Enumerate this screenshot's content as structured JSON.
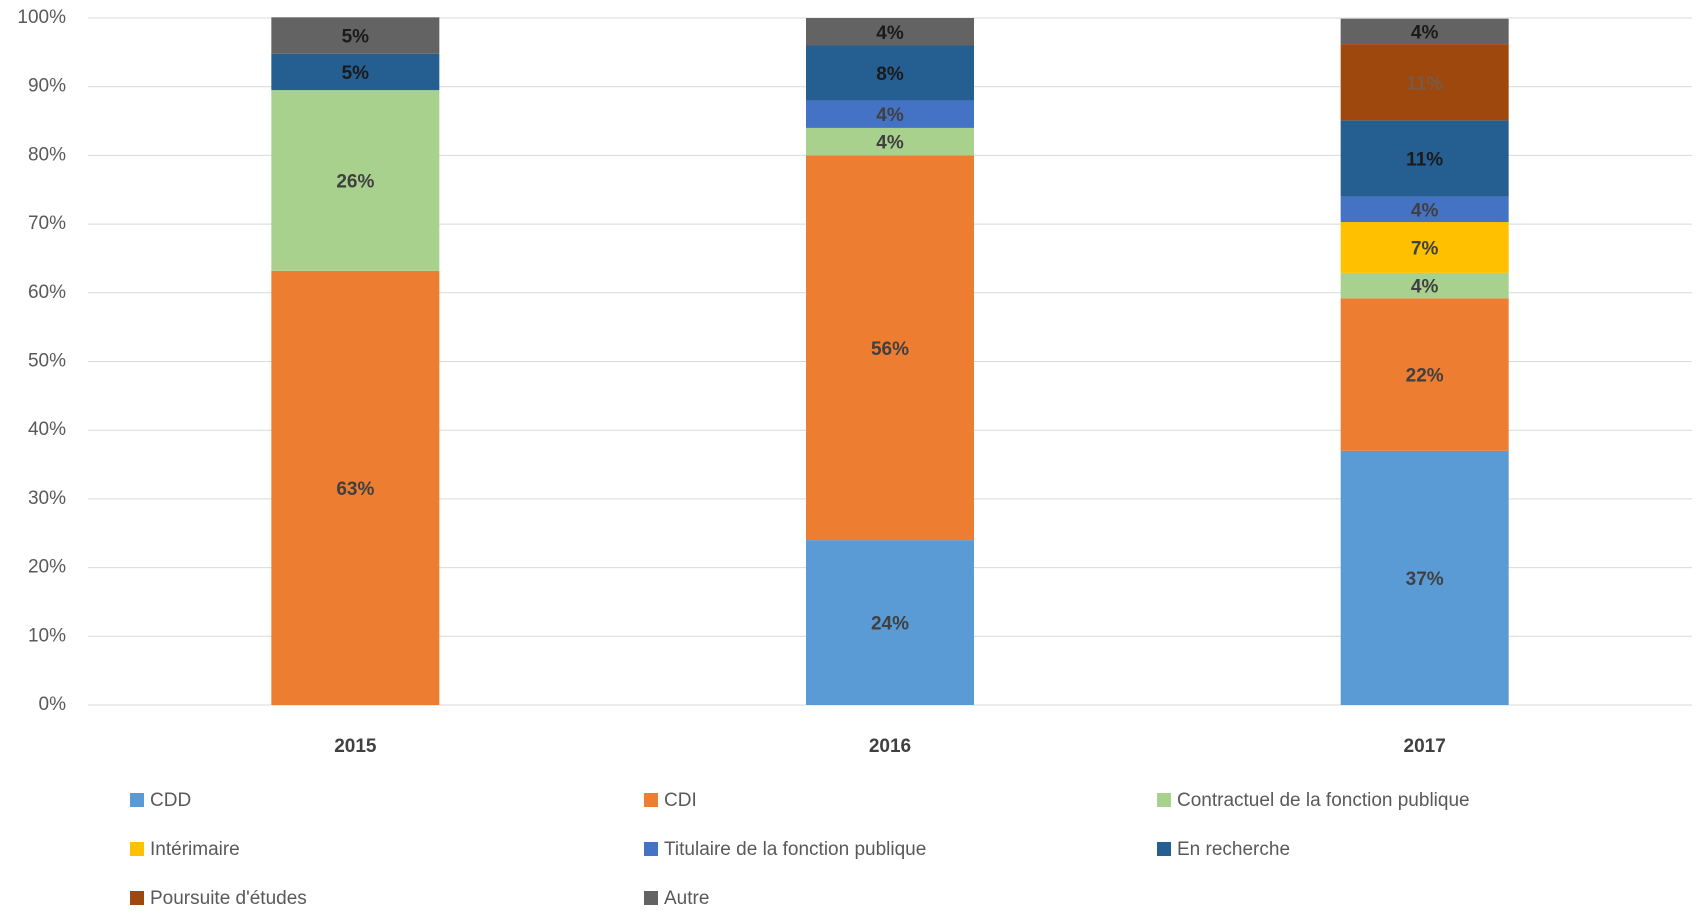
{
  "chart_data": {
    "type": "stacked-bar",
    "categories": [
      "2015",
      "2016",
      "2017"
    ],
    "series": [
      {
        "name": "CDD",
        "color": "#5b9bd5",
        "values": [
          null,
          24,
          37.0
        ],
        "value_labels": [
          null,
          "24%",
          "37%"
        ]
      },
      {
        "name": "CDI",
        "color": "#ed7d31",
        "values": [
          63.2,
          56,
          22.2
        ],
        "value_labels": [
          "63%",
          "56%",
          "22%"
        ]
      },
      {
        "name": "Contractuel de la fonction publique",
        "color": "#a9d18e",
        "values": [
          26.3,
          4,
          3.7
        ],
        "value_labels": [
          "26%",
          "4%",
          "4%"
        ]
      },
      {
        "name": "Intérimaire",
        "color": "#ffc000",
        "values": [
          null,
          null,
          7.4
        ],
        "value_labels": [
          null,
          null,
          "7%"
        ]
      },
      {
        "name": "Titulaire de la fonction publique",
        "color": "#4472c4",
        "values": [
          null,
          4,
          3.7
        ],
        "value_labels": [
          null,
          "4%",
          "4%"
        ]
      },
      {
        "name": "En recherche",
        "color": "#255e91",
        "values": [
          5.3,
          8,
          11.1
        ],
        "value_labels": [
          "5%",
          "8%",
          "11%"
        ]
      },
      {
        "name": "Poursuite d'études",
        "color": "#9e480e",
        "values": [
          null,
          null,
          11.1
        ],
        "value_labels": [
          null,
          null,
          "11%"
        ]
      },
      {
        "name": "Autre",
        "color": "#636363",
        "values": [
          5.3,
          4,
          3.7
        ],
        "value_labels": [
          "5%",
          "4%",
          "4%"
        ]
      }
    ],
    "ylim": [
      0,
      100
    ],
    "yticks": [
      {
        "value": 0,
        "label": "0%"
      },
      {
        "value": 10,
        "label": "10%"
      },
      {
        "value": 20,
        "label": "20%"
      },
      {
        "value": 30,
        "label": "30%"
      },
      {
        "value": 40,
        "label": "40%"
      },
      {
        "value": 50,
        "label": "50%"
      },
      {
        "value": 60,
        "label": "60%"
      },
      {
        "value": 70,
        "label": "70%"
      },
      {
        "value": 80,
        "label": "80%"
      },
      {
        "value": 90,
        "label": "90%"
      },
      {
        "value": 100,
        "label": "100%"
      }
    ],
    "grid": true,
    "legend": "bottom"
  }
}
